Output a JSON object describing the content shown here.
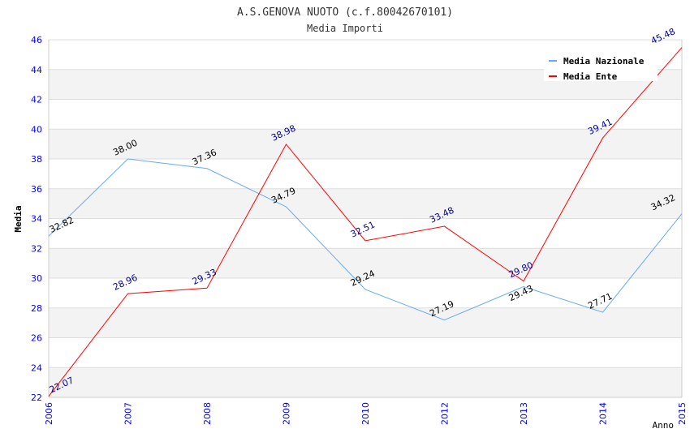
{
  "chart_data": {
    "type": "line",
    "title": "A.S.GENOVA NUOTO (c.f.80042670101)",
    "subtitle": "Media Importi",
    "xlabel": "Anno",
    "ylabel": "Media",
    "ylim": [
      22,
      46
    ],
    "yticks": [
      22,
      24,
      26,
      28,
      30,
      32,
      34,
      36,
      38,
      40,
      42,
      44,
      46
    ],
    "categories": [
      "2006",
      "2007",
      "2008",
      "2009",
      "2010",
      "2012",
      "2013",
      "2014",
      "2015"
    ],
    "grid": true,
    "legend_position": "top-right",
    "series": [
      {
        "name": "Media Nazionale",
        "color": "#66aaee",
        "label_color": "#000000",
        "values": [
          32.82,
          38.0,
          37.36,
          34.79,
          29.24,
          27.19,
          29.43,
          27.71,
          34.32
        ]
      },
      {
        "name": "Media Ente",
        "color": "#ff0000",
        "label_color": "#000099",
        "values": [
          22.07,
          28.96,
          29.33,
          38.98,
          32.51,
          33.48,
          29.8,
          39.41,
          45.48
        ]
      }
    ]
  }
}
